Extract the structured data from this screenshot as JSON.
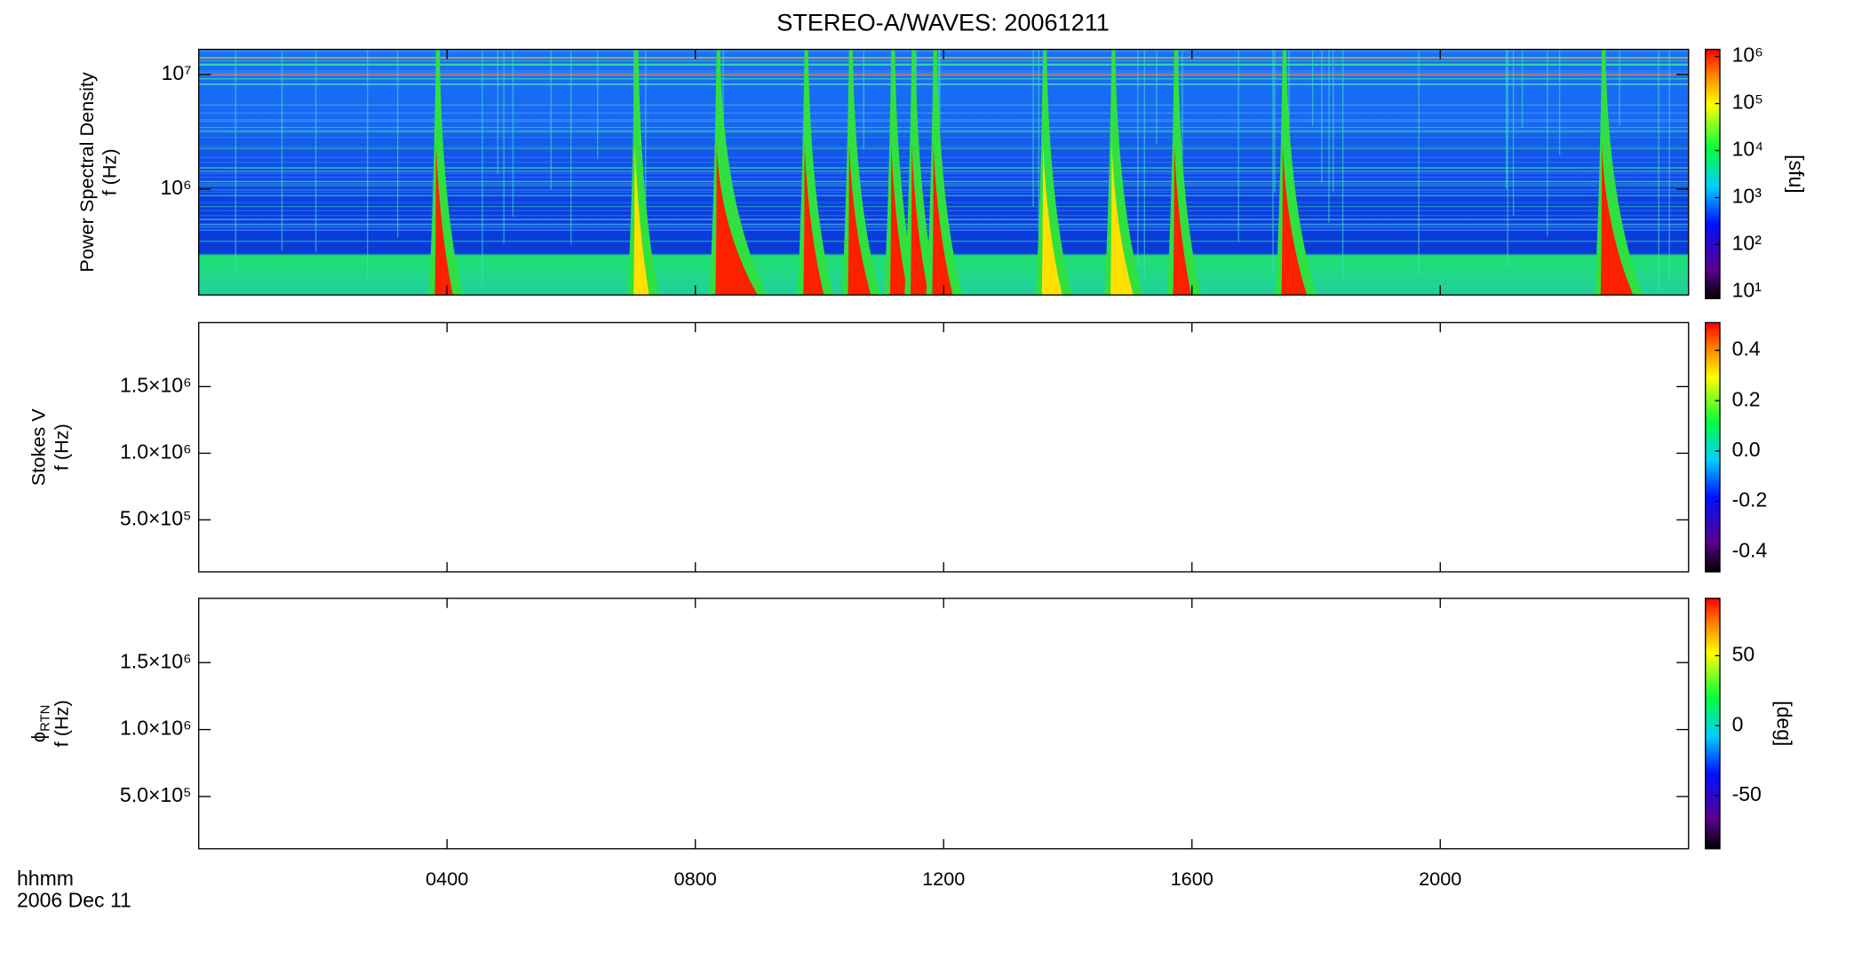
{
  "chart_data": [
    {
      "type": "spectrogram",
      "title": "STEREO-A/WAVES: 20061211",
      "ylabel": [
        "Power Spectral Density",
        "f (Hz)"
      ],
      "ylog": true,
      "ylim": [
        119000,
        16600000
      ],
      "yticks": [
        {
          "value": 1000000,
          "label": "10⁶"
        },
        {
          "value": 10000000,
          "label": "10⁷"
        }
      ],
      "xlim": [
        0,
        24
      ],
      "clog": true,
      "clim": [
        7.1,
        1420000
      ],
      "cticks": [
        {
          "value": 10,
          "label": "10¹"
        },
        {
          "value": 100,
          "label": "10²"
        },
        {
          "value": 1000,
          "label": "10³"
        },
        {
          "value": 10000,
          "label": "10⁴"
        },
        {
          "value": 100000,
          "label": "10⁵"
        },
        {
          "value": 1000000,
          "label": "10⁶"
        }
      ],
      "clabel": "[sfu]"
    },
    {
      "type": "spectrogram",
      "ylabel": [
        "Stokes V",
        "f (Hz)"
      ],
      "ylog": false,
      "ylim": [
        110000,
        1980000
      ],
      "yticks": [
        {
          "value": 500000,
          "label": "5.0×10⁵"
        },
        {
          "value": 1000000,
          "label": "1.0×10⁶"
        },
        {
          "value": 1500000,
          "label": "1.5×10⁶"
        }
      ],
      "xlim": [
        0,
        24
      ],
      "clog": false,
      "clim": [
        -0.48,
        0.51
      ],
      "cticks": [
        {
          "value": -0.4,
          "label": "-0.4"
        },
        {
          "value": -0.2,
          "label": "-0.2"
        },
        {
          "value": 0,
          "label": "0.0"
        },
        {
          "value": 0.2,
          "label": "0.2"
        },
        {
          "value": 0.4,
          "label": "0.4"
        }
      ]
    },
    {
      "type": "spectrogram",
      "ylabel": [
        "ϕ",
        "f (Hz)"
      ],
      "ylabel_subscript": "RTN",
      "ylog": false,
      "ylim": [
        110000,
        1980000
      ],
      "yticks": [
        {
          "value": 500000,
          "label": "5.0×10⁵"
        },
        {
          "value": 1000000,
          "label": "1.0×10⁶"
        },
        {
          "value": 1500000,
          "label": "1.5×10⁶"
        }
      ],
      "xlim": [
        0,
        24
      ],
      "xticks": [
        {
          "value": 4,
          "label": "0400"
        },
        {
          "value": 8,
          "label": "0800"
        },
        {
          "value": 12,
          "label": "1200"
        },
        {
          "value": 16,
          "label": "1600"
        },
        {
          "value": 20,
          "label": "2000"
        }
      ],
      "xlabel": [
        "hhmm",
        "2006 Dec 11"
      ],
      "clog": false,
      "clim": [
        -88,
        91
      ],
      "cticks": [
        -50,
        0,
        50
      ],
      "clabel": "[deg]"
    }
  ]
}
